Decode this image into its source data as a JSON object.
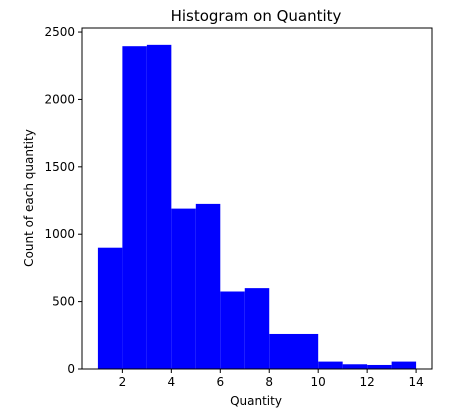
{
  "chart_data": {
    "type": "bar",
    "title": "Histogram on Quantity",
    "xlabel": "Quantity",
    "ylabel": "Count of each quantity",
    "xlim": [
      0.35,
      14.65
    ],
    "ylim": [
      0,
      2530
    ],
    "x_ticks": [
      2,
      4,
      6,
      8,
      10,
      12,
      14
    ],
    "x_tick_labels": [
      "2",
      "4",
      "6",
      "8",
      "10",
      "12",
      "14"
    ],
    "y_ticks": [
      0,
      500,
      1000,
      1500,
      2000,
      2500
    ],
    "y_tick_labels": [
      "0",
      "500",
      "1000",
      "1500",
      "2000",
      "2500"
    ],
    "grid": false,
    "bar_color": "#0000ff",
    "bins": [
      {
        "x0": 1.0,
        "x1": 2.0,
        "count": 900
      },
      {
        "x0": 2.0,
        "x1": 3.0,
        "count": 2395
      },
      {
        "x0": 3.0,
        "x1": 4.0,
        "count": 2405
      },
      {
        "x0": 4.0,
        "x1": 5.0,
        "count": 1190
      },
      {
        "x0": 5.0,
        "x1": 6.0,
        "count": 1225
      },
      {
        "x0": 6.0,
        "x1": 7.0,
        "count": 575
      },
      {
        "x0": 7.0,
        "x1": 8.0,
        "count": 600
      },
      {
        "x0": 8.0,
        "x1": 10.0,
        "count": 260
      },
      {
        "x0": 10.0,
        "x1": 11.0,
        "count": 55
      },
      {
        "x0": 11.0,
        "x1": 12.0,
        "count": 35
      },
      {
        "x0": 12.0,
        "x1": 13.0,
        "count": 30
      },
      {
        "x0": 13.0,
        "x1": 14.0,
        "count": 55
      }
    ]
  }
}
